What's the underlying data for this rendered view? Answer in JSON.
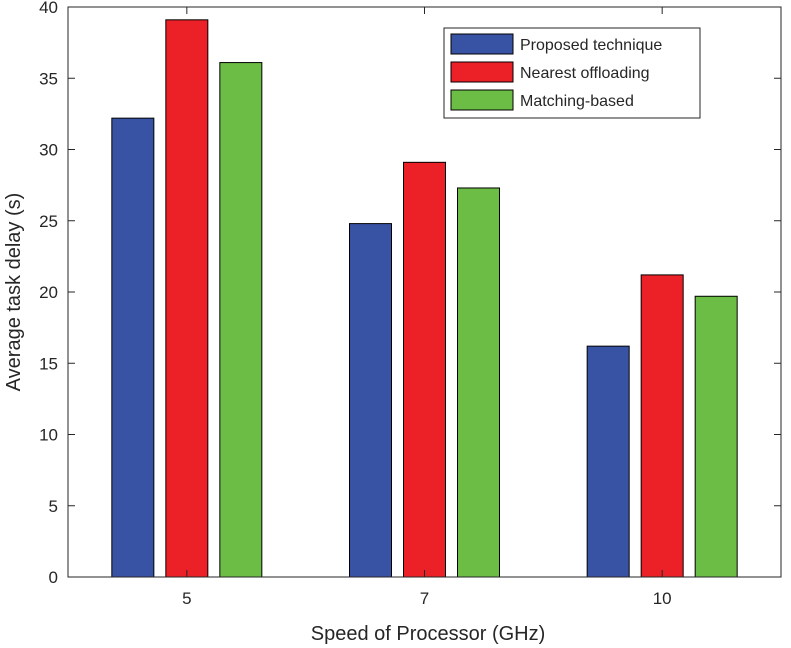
{
  "chart_data": {
    "type": "bar",
    "title": "",
    "xlabel": "Speed of Processor (GHz)",
    "ylabel": "Average task delay (s)",
    "categories": [
      "5",
      "7",
      "10"
    ],
    "ylim": [
      0,
      40
    ],
    "yticks": [
      "0",
      "5",
      "10",
      "15",
      "20",
      "25",
      "30",
      "35",
      "40"
    ],
    "grid": false,
    "legend_position": "top-right",
    "series": [
      {
        "name": "Proposed technique",
        "color": "#3953a4",
        "values": [
          32.2,
          24.8,
          16.2
        ]
      },
      {
        "name": "Nearest offloading",
        "color": "#ec2027",
        "values": [
          39.1,
          29.1,
          21.2
        ]
      },
      {
        "name": "Matching-based",
        "color": "#6cbd45",
        "values": [
          36.1,
          27.3,
          19.7
        ]
      }
    ]
  }
}
